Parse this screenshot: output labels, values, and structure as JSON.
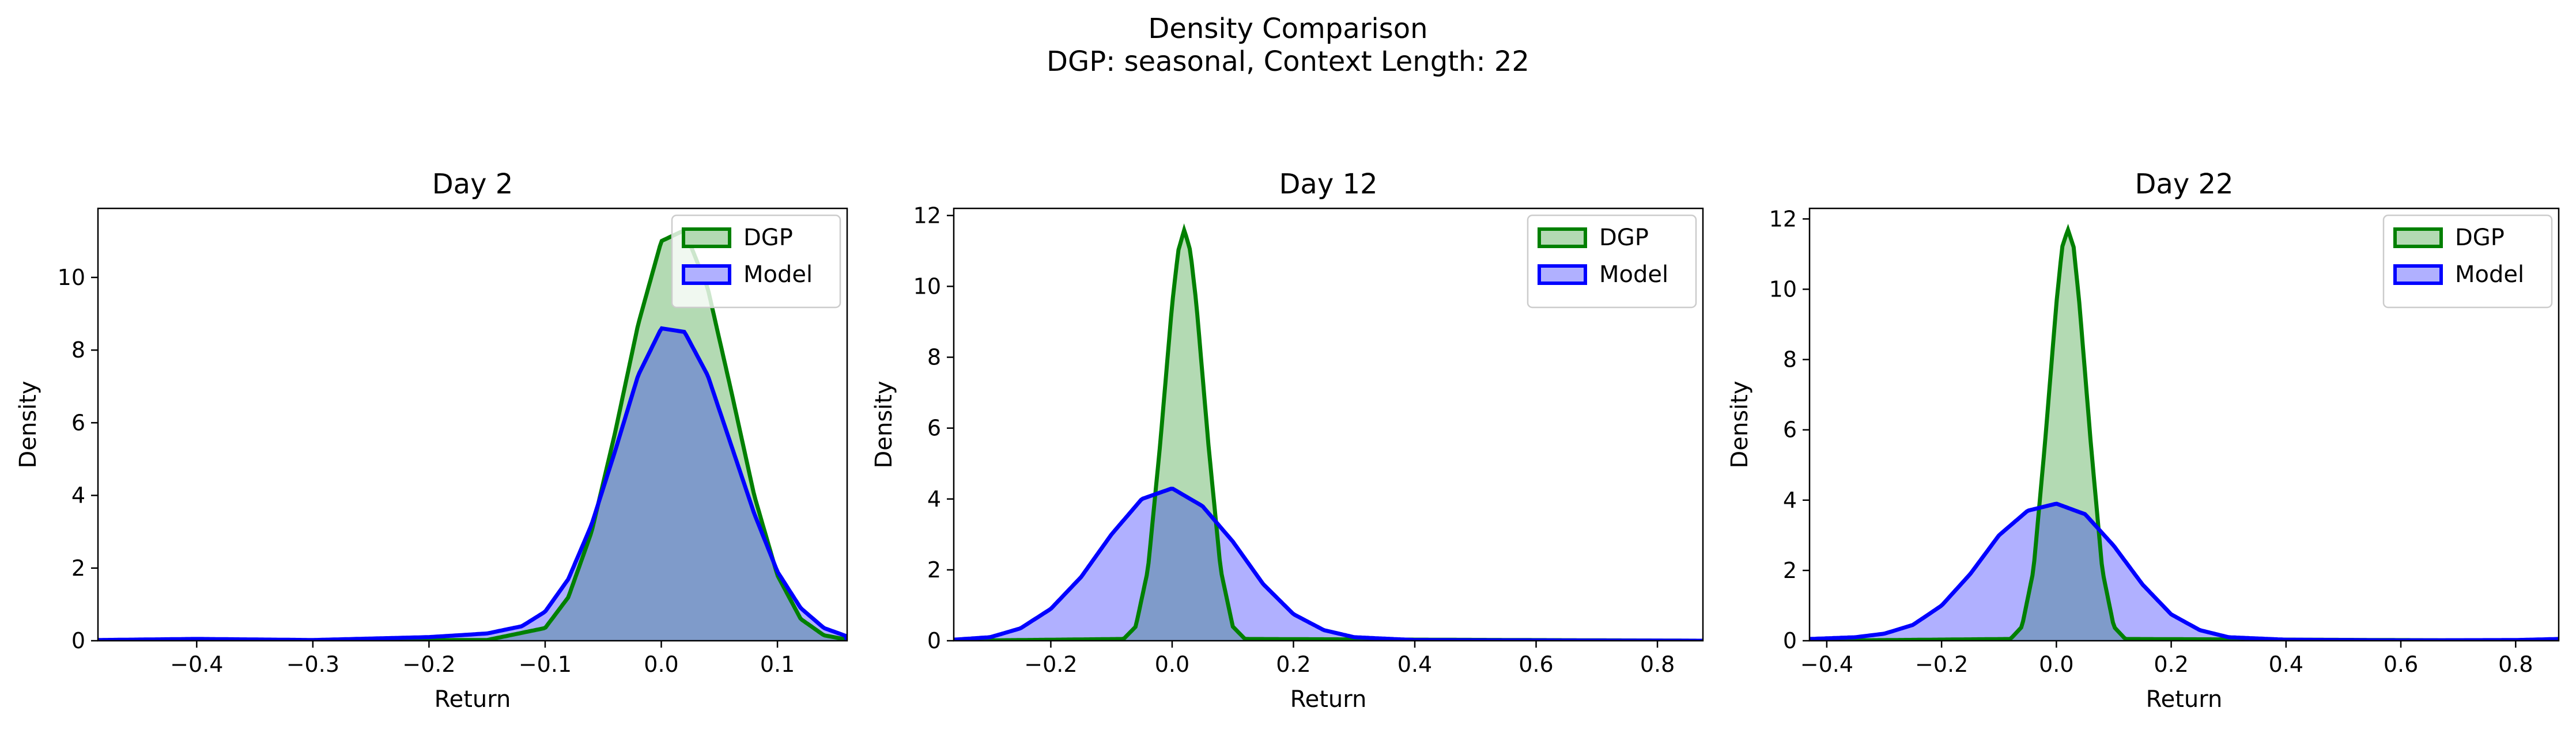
{
  "figure": {
    "title_line1": "Density Comparison",
    "title_line2": "DGP: seasonal, Context Length: 22"
  },
  "colors": {
    "dgp_line": "#008000",
    "dgp_fill": "#b3dab3",
    "model_line": "#0000ff",
    "model_fill": "#b0b0ff",
    "overlap_fill": "#7f9bca"
  },
  "chart_data": [
    {
      "type": "area",
      "title": "Day 2",
      "xlabel": "Return",
      "ylabel": "Density",
      "xlim": [
        -0.485,
        0.16
      ],
      "ylim": [
        0,
        11.9
      ],
      "xticks": [
        -0.4,
        -0.3,
        -0.2,
        -0.1,
        0.0,
        0.1
      ],
      "xtick_labels": [
        "−0.4",
        "−0.3",
        "−0.2",
        "−0.1",
        "0.0",
        "0.1"
      ],
      "yticks": [
        0,
        2,
        4,
        6,
        8,
        10
      ],
      "ytick_labels": [
        "0",
        "2",
        "4",
        "6",
        "8",
        "10"
      ],
      "legend": {
        "placement": "upper-right",
        "entries": [
          "DGP",
          "Model"
        ]
      },
      "series": [
        {
          "name": "DGP",
          "x": [
            -0.485,
            -0.15,
            -0.1,
            -0.08,
            -0.06,
            -0.04,
            -0.02,
            0.0,
            0.02,
            0.04,
            0.06,
            0.08,
            0.1,
            0.12,
            0.14,
            0.16
          ],
          "y": [
            0,
            0.02,
            0.35,
            1.2,
            3.0,
            5.7,
            8.7,
            11.0,
            11.3,
            9.7,
            6.9,
            4.0,
            1.8,
            0.6,
            0.15,
            0.03
          ]
        },
        {
          "name": "Model",
          "x": [
            -0.485,
            -0.4,
            -0.3,
            -0.2,
            -0.15,
            -0.12,
            -0.1,
            -0.08,
            -0.06,
            -0.04,
            -0.02,
            0.0,
            0.02,
            0.04,
            0.06,
            0.08,
            0.1,
            0.12,
            0.14,
            0.16
          ],
          "y": [
            0.02,
            0.05,
            0.02,
            0.1,
            0.2,
            0.4,
            0.8,
            1.7,
            3.2,
            5.2,
            7.3,
            8.6,
            8.5,
            7.3,
            5.4,
            3.5,
            1.9,
            0.9,
            0.35,
            0.12
          ]
        }
      ]
    },
    {
      "type": "area",
      "title": "Day 12",
      "xlabel": "Return",
      "ylabel": "Density",
      "xlim": [
        -0.36,
        0.875
      ],
      "ylim": [
        0,
        12.2
      ],
      "xticks": [
        -0.2,
        0.0,
        0.2,
        0.4,
        0.6,
        0.8
      ],
      "xtick_labels": [
        "−0.2",
        "0.0",
        "0.2",
        "0.4",
        "0.6",
        "0.8"
      ],
      "yticks": [
        0,
        2,
        4,
        6,
        8,
        10,
        12
      ],
      "ytick_labels": [
        "0",
        "2",
        "4",
        "6",
        "8",
        "10",
        "12"
      ],
      "legend": {
        "placement": "upper-right",
        "entries": [
          "DGP",
          "Model"
        ]
      },
      "series": [
        {
          "name": "DGP",
          "x": [
            -0.36,
            -0.08,
            -0.06,
            -0.04,
            -0.02,
            0.0,
            0.01,
            0.02,
            0.03,
            0.04,
            0.06,
            0.08,
            0.1,
            0.12,
            0.875
          ],
          "y": [
            0,
            0.05,
            0.4,
            2.0,
            5.5,
            9.5,
            11.0,
            11.6,
            11.0,
            9.5,
            5.5,
            2.0,
            0.4,
            0.05,
            0
          ]
        },
        {
          "name": "Model",
          "x": [
            -0.36,
            -0.3,
            -0.25,
            -0.2,
            -0.15,
            -0.1,
            -0.05,
            0.0,
            0.05,
            0.1,
            0.15,
            0.2,
            0.25,
            0.3,
            0.4,
            0.6,
            0.875
          ],
          "y": [
            0.03,
            0.1,
            0.35,
            0.9,
            1.8,
            3.0,
            4.0,
            4.3,
            3.8,
            2.8,
            1.6,
            0.75,
            0.3,
            0.1,
            0.02,
            0.01,
            0.0
          ]
        }
      ]
    },
    {
      "type": "area",
      "title": "Day 22",
      "xlabel": "Return",
      "ylabel": "Density",
      "xlim": [
        -0.43,
        0.875
      ],
      "ylim": [
        0,
        12.3
      ],
      "xticks": [
        -0.4,
        -0.2,
        0.0,
        0.2,
        0.4,
        0.6,
        0.8
      ],
      "xtick_labels": [
        "−0.4",
        "−0.2",
        "0.0",
        "0.2",
        "0.4",
        "0.6",
        "0.8"
      ],
      "yticks": [
        0,
        2,
        4,
        6,
        8,
        10,
        12
      ],
      "ytick_labels": [
        "0",
        "2",
        "4",
        "6",
        "8",
        "10",
        "12"
      ],
      "legend": {
        "placement": "upper-right",
        "entries": [
          "DGP",
          "Model"
        ]
      },
      "series": [
        {
          "name": "DGP",
          "x": [
            -0.43,
            -0.08,
            -0.06,
            -0.04,
            -0.02,
            0.0,
            0.01,
            0.02,
            0.03,
            0.04,
            0.06,
            0.08,
            0.1,
            0.12,
            0.875
          ],
          "y": [
            0,
            0.05,
            0.4,
            2.0,
            5.6,
            9.6,
            11.2,
            11.7,
            11.2,
            9.6,
            5.6,
            2.0,
            0.4,
            0.05,
            0
          ]
        },
        {
          "name": "Model",
          "x": [
            -0.43,
            -0.35,
            -0.3,
            -0.25,
            -0.2,
            -0.15,
            -0.1,
            -0.05,
            0.0,
            0.05,
            0.1,
            0.15,
            0.2,
            0.25,
            0.3,
            0.4,
            0.6,
            0.8,
            0.875
          ],
          "y": [
            0.05,
            0.1,
            0.2,
            0.45,
            1.0,
            1.9,
            3.0,
            3.7,
            3.9,
            3.6,
            2.7,
            1.6,
            0.75,
            0.3,
            0.1,
            0.03,
            0.01,
            0.02,
            0.05
          ]
        }
      ]
    }
  ]
}
